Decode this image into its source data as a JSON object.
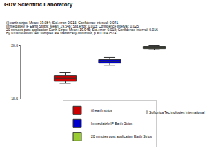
{
  "chart_data": {
    "type": "box",
    "title": "GDV Scientific Laboratory",
    "subtitle": [
      "(i) earth strips: Mean: 19.084; Std.error: 0.015; Confidence interval: 0.041",
      "Immediately IF Earth Strips: Mean: 19.548; Std.error: 0.013; Confidence interval: 0.025",
      "20 minutes post application Earth Strips: Mean: 19.945; Std.error: 0.018; Confidence interval: 0.016",
      "By Kruskal-Wallis test samples are statistically dissimilar, p = 0.0047574"
    ],
    "series": [
      {
        "name": "(i) earth strips",
        "color": "#cc0000",
        "low": 18.93,
        "q1": 18.99,
        "median": 19.08,
        "q3": 19.15,
        "high": 19.23
      },
      {
        "name": "Immediately IF Earth Strips",
        "color": "#0000cc",
        "low": 19.44,
        "q1": 19.5,
        "median": 19.55,
        "q3": 19.6,
        "high": 19.66
      },
      {
        "name": "20 minutes post application Earth Strips",
        "color": "#99cc33",
        "low": 19.88,
        "q1": 19.91,
        "median": 19.95,
        "q3": 19.97,
        "high": 19.99
      }
    ],
    "ylim": [
      18.5,
      20.0
    ],
    "yticks": [
      18.5,
      {
        "value": 20.0,
        "label": "20.0"
      }
    ],
    "grid": false,
    "legend": "bottom",
    "tick_labels": "y",
    "footer": "© Softonica Technologies International"
  }
}
